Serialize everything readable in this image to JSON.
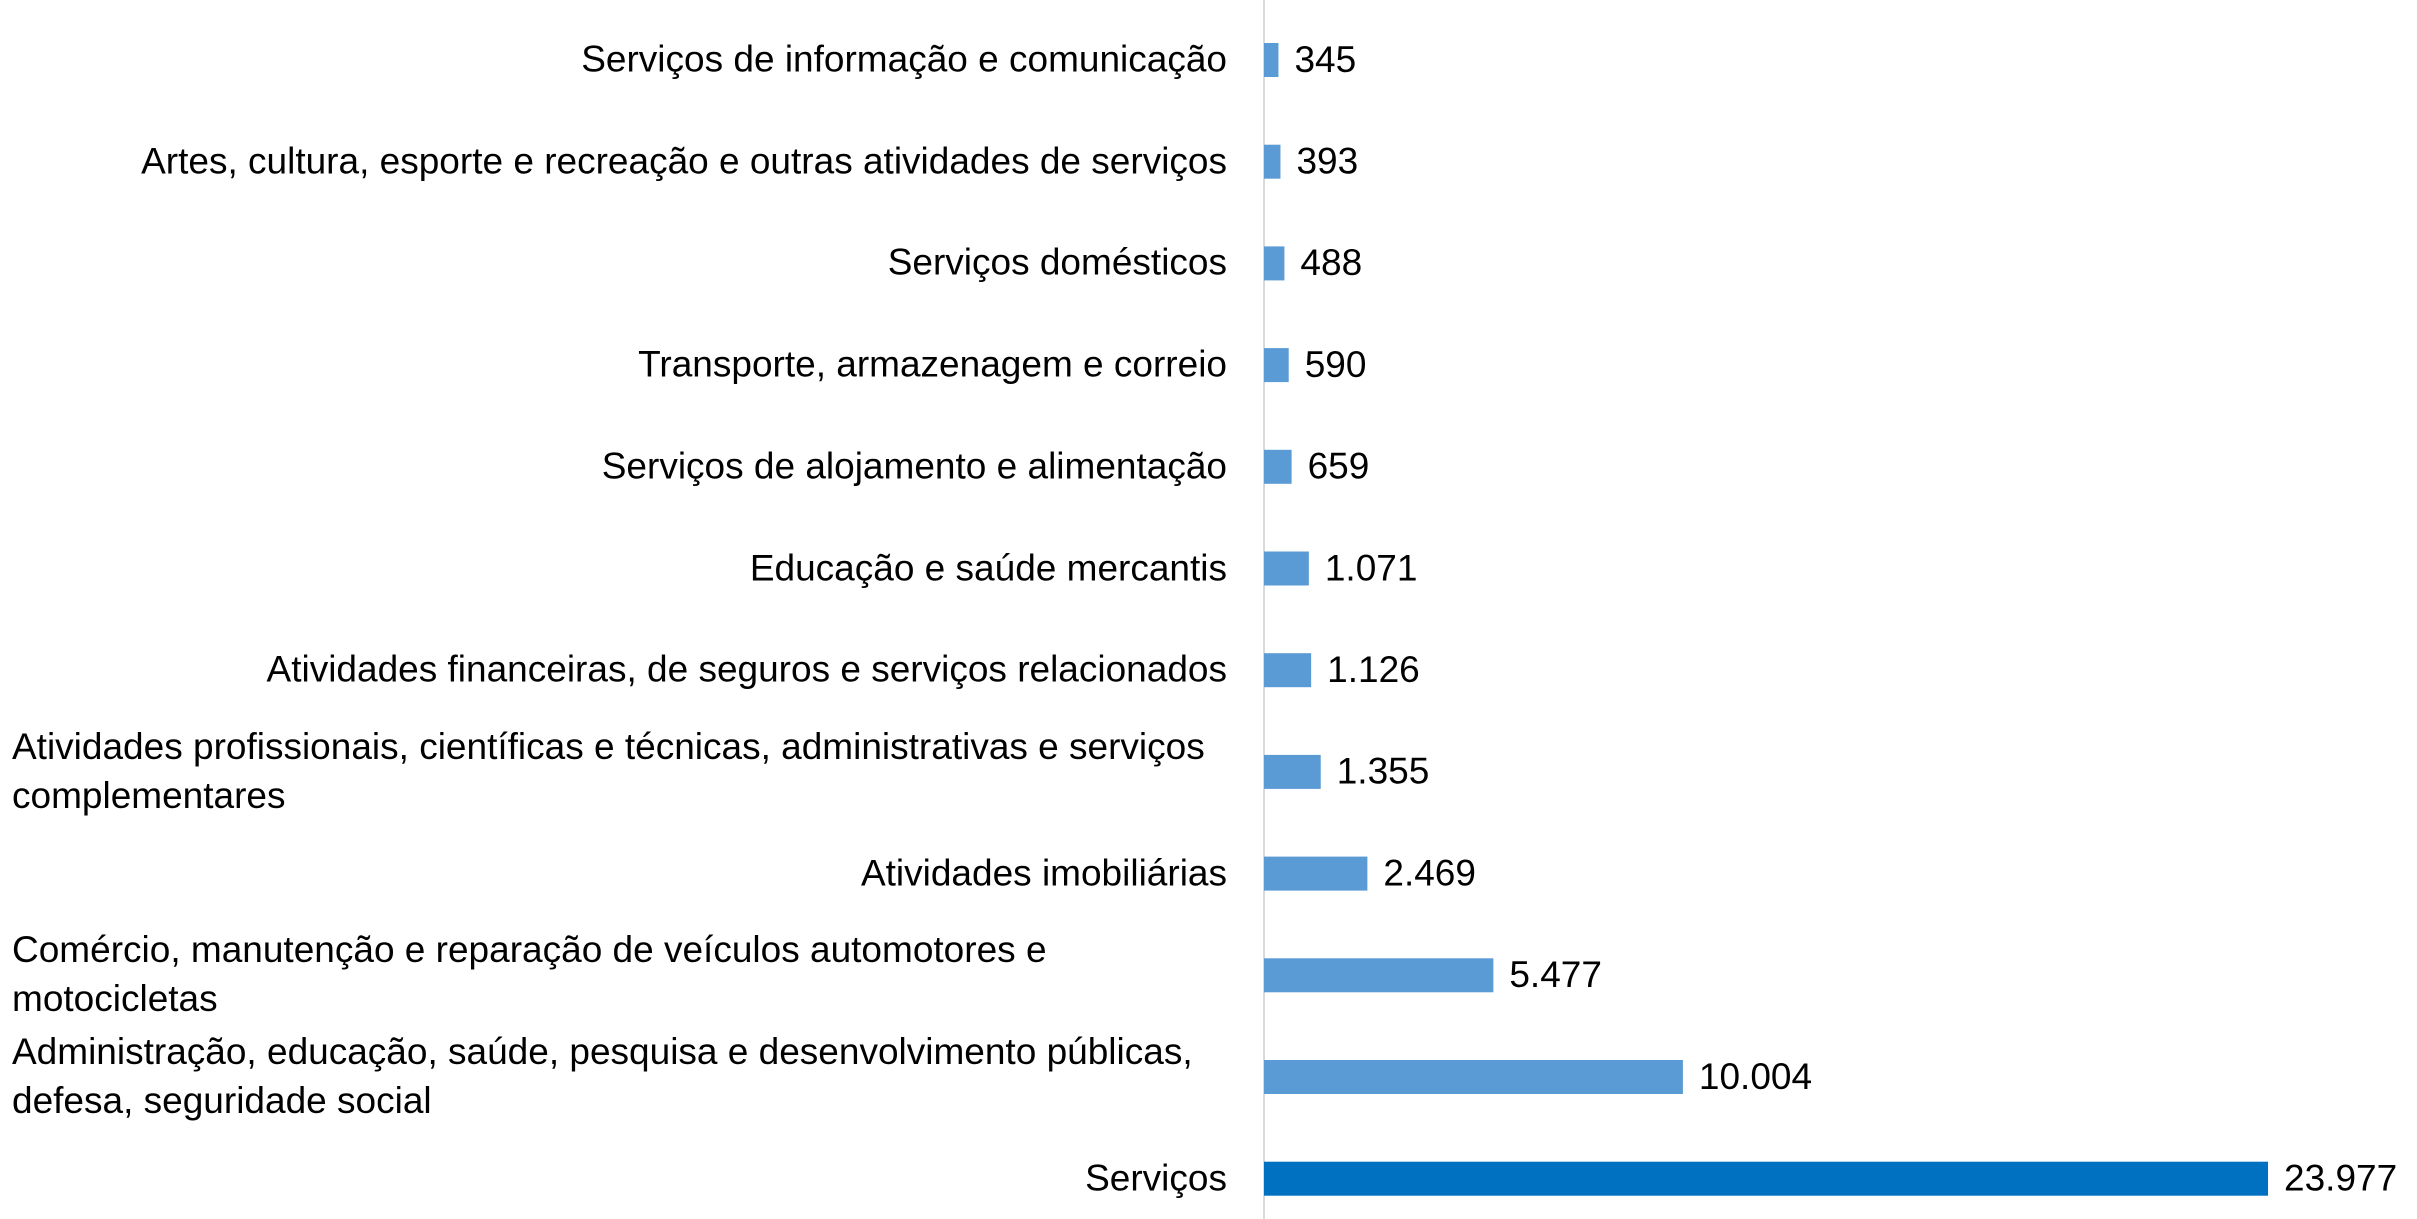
{
  "chart_data": {
    "type": "barh",
    "categories": [
      "Serviços de informação e comunicação",
      "Artes, cultura, esporte e recreação e outras atividades de serviços",
      "Serviços domésticos",
      "Transporte, armazenagem e correio",
      "Serviços de alojamento e alimentação",
      "Educação e saúde mercantis",
      "Atividades financeiras, de seguros e serviços relacionados",
      "Atividades profissionais, científicas e técnicas, administrativas e serviços complementares",
      "Atividades imobiliárias",
      "Comércio, manutenção e reparação de veículos automotores e motocicletas",
      "Administração, educação, saúde, pesquisa e desenvolvimento públicas, defesa, seguridade social",
      "Serviços"
    ],
    "values": [
      345,
      393,
      488,
      590,
      659,
      1071,
      1126,
      1355,
      2469,
      5477,
      10004,
      23977
    ],
    "value_labels": [
      "345",
      "393",
      "488",
      "590",
      "659",
      "1.071",
      "1.126",
      "1.355",
      "2.469",
      "5.477",
      "10.004",
      "23.977"
    ],
    "colors": [
      "#5b9bd5",
      "#5b9bd5",
      "#5b9bd5",
      "#5b9bd5",
      "#5b9bd5",
      "#5b9bd5",
      "#5b9bd5",
      "#5b9bd5",
      "#5b9bd5",
      "#5b9bd5",
      "#5b9bd5",
      "#0070c0"
    ],
    "xlim": [
      0,
      24000
    ]
  }
}
